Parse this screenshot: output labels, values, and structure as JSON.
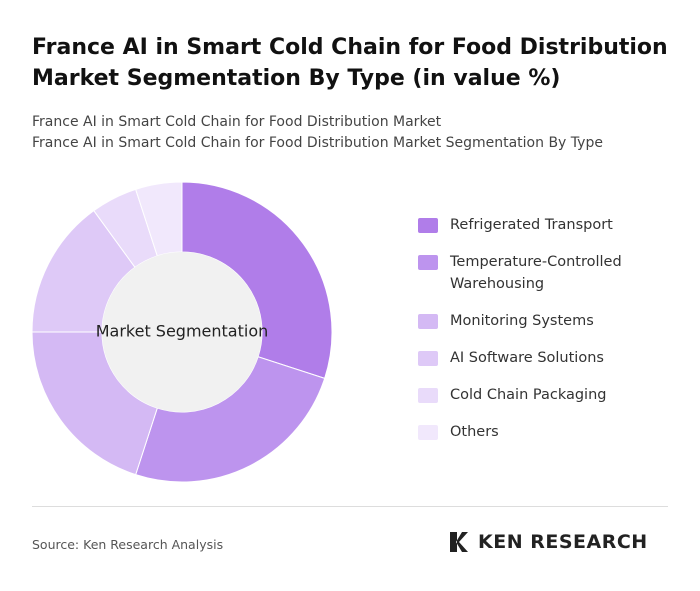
{
  "chart_data": {
    "type": "donut",
    "title": "France AI in Smart Cold Chain for Food Distribution Market Segmentation By Type (in value %)",
    "subtitle": [
      "France AI in Smart Cold Chain for Food Distribution Market",
      "France AI in Smart Cold Chain for Food Distribution Market Segmentation By Type"
    ],
    "center_label": "Market Segmentation",
    "categories": [
      "Refrigerated Transport",
      "Temperature-Controlled Warehousing",
      "Monitoring Systems",
      "AI Software Solutions",
      "Cold Chain Packaging",
      "Others"
    ],
    "values": [
      30,
      25,
      20,
      15,
      5,
      5
    ],
    "colors": [
      "#b07de9",
      "#bd94ee",
      "#d4b9f4",
      "#dec9f7",
      "#e9dbfa",
      "#f1e8fc"
    ]
  },
  "source": "Source: Ken Research Analysis",
  "logo": "KEN RESEARCH"
}
